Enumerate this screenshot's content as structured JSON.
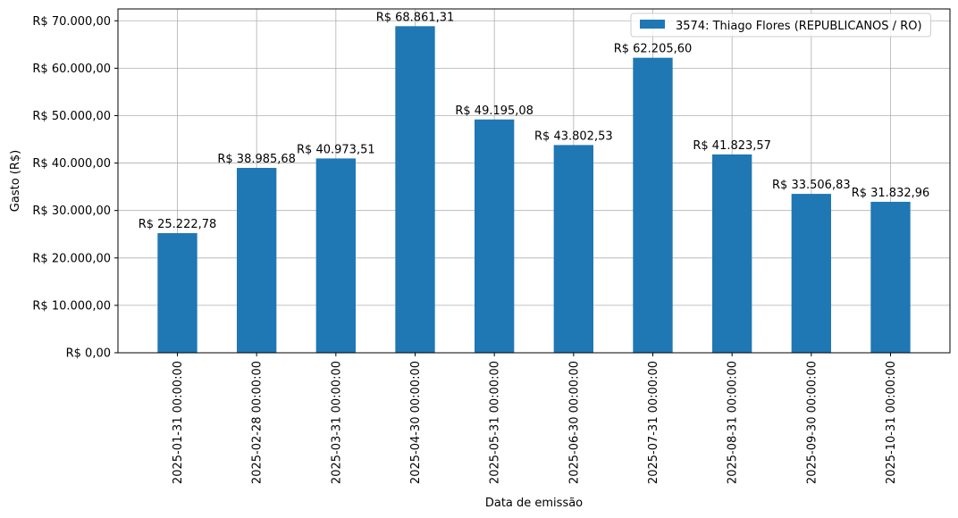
{
  "chart_data": {
    "type": "bar",
    "xlabel": "Data de emissão",
    "ylabel": "Gasto (R$)",
    "ylim": [
      0,
      72500
    ],
    "yticks": [
      0,
      10000,
      20000,
      30000,
      40000,
      50000,
      60000,
      70000
    ],
    "ytick_labels": [
      "R$ 0,00",
      "R$ 10.000,00",
      "R$ 20.000,00",
      "R$ 30.000,00",
      "R$ 40.000,00",
      "R$ 50.000,00",
      "R$ 60.000,00",
      "R$ 70.000,00"
    ],
    "grid": true,
    "legend_position": "top-right",
    "categories": [
      "2025-01-31 00:00:00",
      "2025-02-28 00:00:00",
      "2025-03-31 00:00:00",
      "2025-04-30 00:00:00",
      "2025-05-31 00:00:00",
      "2025-06-30 00:00:00",
      "2025-07-31 00:00:00",
      "2025-08-31 00:00:00",
      "2025-09-30 00:00:00",
      "2025-10-31 00:00:00"
    ],
    "series": [
      {
        "name": "3574: Thiago Flores (REPUBLICANOS / RO)",
        "color": "#1f77b4",
        "values": [
          25222.78,
          38985.68,
          40973.51,
          68861.31,
          49195.08,
          43802.53,
          62205.6,
          41823.57,
          33506.83,
          31832.96
        ],
        "labels": [
          "R$ 25.222,78",
          "R$ 38.985,68",
          "R$ 40.973,51",
          "R$ 68.861,31",
          "R$ 49.195,08",
          "R$ 43.802,53",
          "R$ 62.205,60",
          "R$ 41.823,57",
          "R$ 33.506,83",
          "R$ 31.832,96"
        ]
      }
    ]
  }
}
